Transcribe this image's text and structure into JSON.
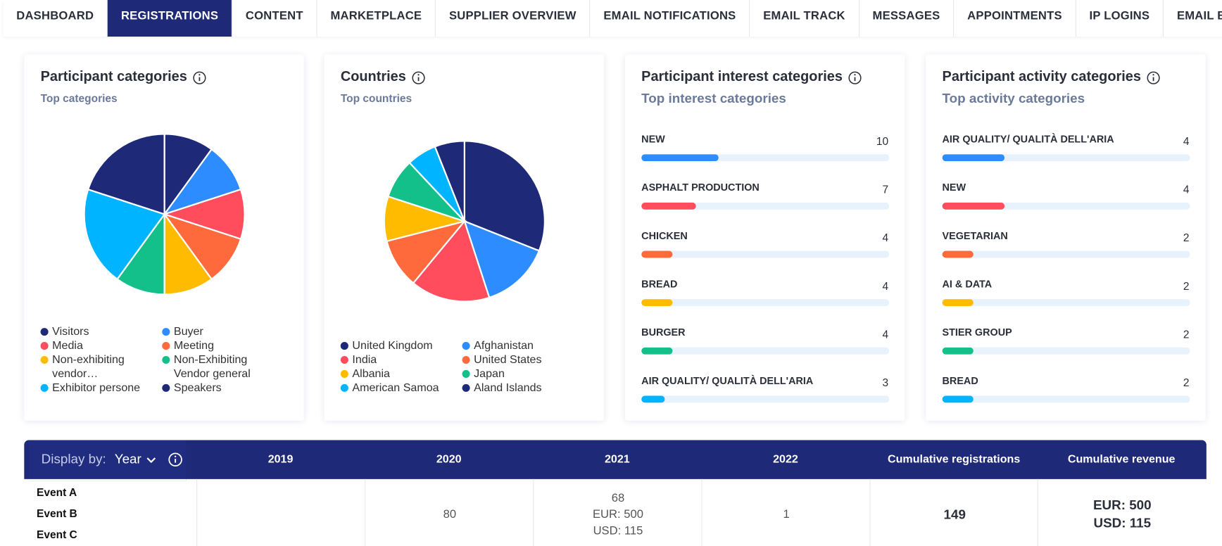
{
  "nav": {
    "tabs": [
      "DASHBOARD",
      "REGISTRATIONS",
      "CONTENT",
      "MARKETPLACE",
      "SUPPLIER OVERVIEW",
      "EMAIL NOTIFICATIONS",
      "EMAIL TRACK",
      "MESSAGES",
      "APPOINTMENTS",
      "IP LOGINS",
      "EMAIL BLACKLIST"
    ],
    "active": 1
  },
  "pie_cards": [
    {
      "title": "Participant categories",
      "subtitle": "Top categories",
      "chart": {
        "type": "pie",
        "categories": [
          "Visitors",
          "Buyer",
          "Media",
          "Meeting",
          "Non-exhibiting vendor…",
          "Non-Exhibiting Vendor general",
          "Exhibitor persone",
          "Speakers"
        ],
        "values": [
          1,
          1,
          1,
          1,
          1,
          1,
          2,
          2
        ],
        "colors": [
          "#1e2a78",
          "#2d8cff",
          "#ff4d5e",
          "#ff6a3d",
          "#ffbb00",
          "#13c08a",
          "#00b4ff",
          "#1e2a78"
        ]
      }
    },
    {
      "title": "Countries",
      "subtitle": "Top countries",
      "chart": {
        "type": "pie",
        "categories": [
          "United Kingdom",
          "Afghanistan",
          "India",
          "United States",
          "Albania",
          "Japan",
          "American Samoa",
          "Aland Islands"
        ],
        "values": [
          31,
          14,
          16,
          10,
          9,
          8,
          6,
          6
        ],
        "colors": [
          "#1e2a78",
          "#2d8cff",
          "#ff4d5e",
          "#ff6a3d",
          "#ffbb00",
          "#13c08a",
          "#00b4ff",
          "#1e2a78"
        ]
      }
    }
  ],
  "bar_cards": [
    {
      "title": "Participant interest categories",
      "subtitle": "Top interest categories",
      "chart": {
        "type": "bar",
        "categories": [
          "NEW",
          "ASPHALT PRODUCTION",
          "CHICKEN",
          "BREAD",
          "BURGER",
          "AIR QUALITY/ QUALITÀ DELL'ARIA"
        ],
        "values": [
          10,
          7,
          4,
          4,
          4,
          3
        ],
        "xlim": [
          0,
          32
        ],
        "colors": [
          "#2d8cff",
          "#ff4d5e",
          "#ff6a3d",
          "#ffbb00",
          "#13c08a",
          "#00b4ff"
        ]
      }
    },
    {
      "title": "Participant activity categories",
      "subtitle": "Top activity categories",
      "chart": {
        "type": "bar",
        "categories": [
          "AIR QUALITY/ QUALITÀ DELL'ARIA",
          "NEW",
          "VEGETARIAN",
          "AI & DATA",
          "STIER GROUP",
          "BREAD"
        ],
        "values": [
          4,
          4,
          2,
          2,
          2,
          2
        ],
        "xlim": [
          0,
          16
        ],
        "colors": [
          "#2d8cff",
          "#ff4d5e",
          "#ff6a3d",
          "#ffbb00",
          "#13c08a",
          "#00b4ff"
        ]
      }
    }
  ],
  "table": {
    "display_by": "Display by:",
    "mode": "Year",
    "columns": [
      "2019",
      "2020",
      "2021",
      "2022",
      "Cumulative registrations",
      "Cumulative revenue"
    ],
    "events": [
      "Event A",
      "Event B",
      "Event C"
    ],
    "cells": [
      null,
      [
        80
      ],
      [
        68,
        "EUR: 500",
        "USD: 115"
      ],
      [
        1
      ],
      [
        149
      ],
      [
        "EUR: 500",
        "USD: 115"
      ]
    ]
  }
}
